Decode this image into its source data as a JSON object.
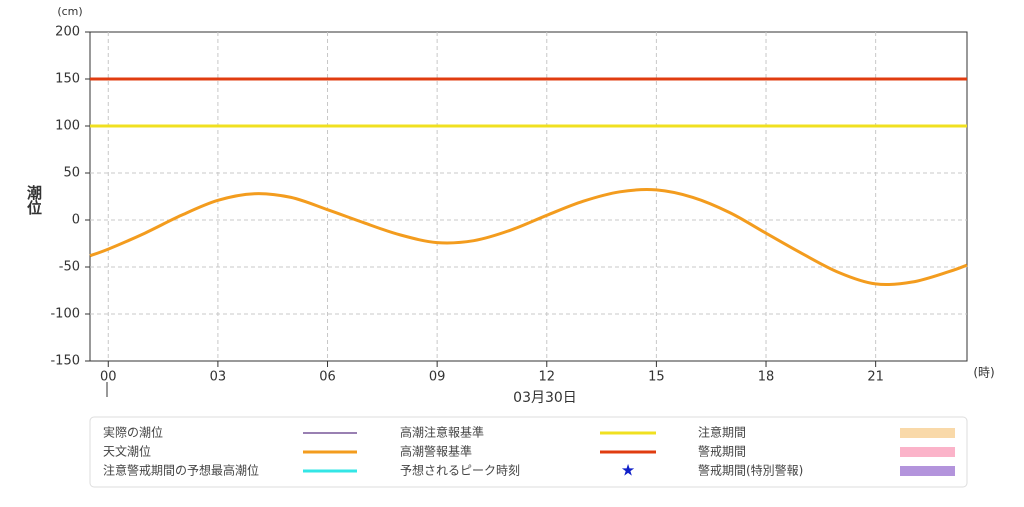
{
  "chart_data": {
    "type": "line",
    "y_unit": "(cm)",
    "x_unit": "(時)",
    "ylabel": "潮位",
    "date_label": "03月30日",
    "xlim": [
      -0.5,
      23.5
    ],
    "xticks": [
      {
        "value": 0,
        "label": "00"
      },
      {
        "value": 3,
        "label": "03"
      },
      {
        "value": 6,
        "label": "06"
      },
      {
        "value": 9,
        "label": "09"
      },
      {
        "value": 12,
        "label": "12"
      },
      {
        "value": 15,
        "label": "15"
      },
      {
        "value": 18,
        "label": "18"
      },
      {
        "value": 21,
        "label": "21"
      }
    ],
    "ylim": [
      -150,
      200
    ],
    "yticks": [
      -150,
      -100,
      -50,
      0,
      50,
      100,
      150,
      200
    ],
    "grid": true,
    "series": [
      {
        "color": "#f39c1e",
        "x": [
          -0.5,
          0,
          1,
          2,
          3,
          4,
          5,
          6,
          7,
          8,
          9,
          10,
          11,
          12,
          13,
          14,
          15,
          16,
          17,
          18,
          19,
          20,
          21,
          22,
          23,
          23.5
        ],
        "values": [
          -38,
          -31,
          -14,
          5,
          21,
          28,
          24,
          11,
          -3,
          -16,
          -24,
          -22,
          -11,
          5,
          20,
          30,
          32,
          24,
          8,
          -14,
          -36,
          -56,
          -68,
          -66,
          -55,
          -48
        ]
      }
    ],
    "ref_lines": [
      {
        "color": "#f0e020",
        "value": 100
      },
      {
        "color": "#e03c10",
        "value": 150
      }
    ],
    "legend": [
      {
        "name": "実際の潮位",
        "color": "#330066",
        "symbol": "thin-line"
      },
      {
        "name": "天文潮位",
        "color": "#f39c1e",
        "symbol": "line"
      },
      {
        "name": "注意警戒期間の予想最高潮位",
        "color": "#33e6e6",
        "symbol": "line"
      },
      {
        "name": "高潮注意報基準",
        "color": "#f0e020",
        "symbol": "line"
      },
      {
        "name": "高潮警報基準",
        "color": "#e03c10",
        "symbol": "line"
      },
      {
        "name": "予想されるピーク時刻",
        "color": "#1020c8",
        "symbol": "star"
      },
      {
        "name": "注意期間",
        "color": "#f9d9a9",
        "symbol": "band"
      },
      {
        "name": "警戒期間",
        "color": "#fbb3c9",
        "symbol": "band"
      },
      {
        "name": "警戒期間(特別警報)",
        "color": "#b394dc",
        "symbol": "band"
      }
    ]
  }
}
